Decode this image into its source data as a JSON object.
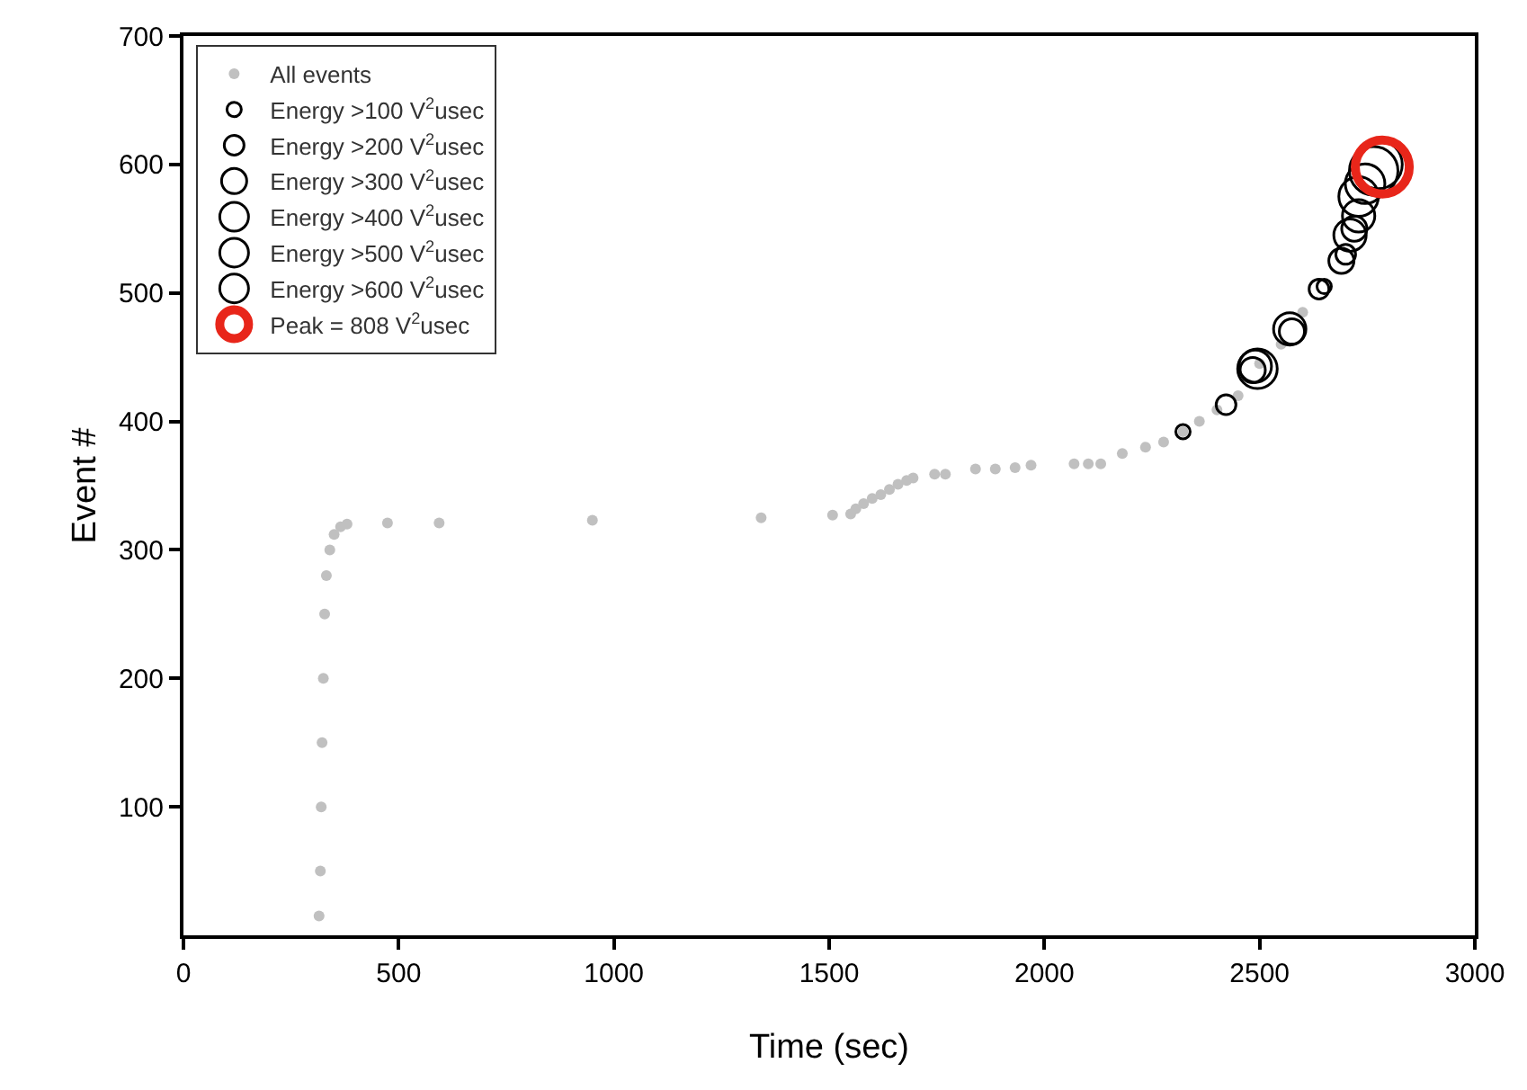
{
  "chart_data": {
    "type": "scatter",
    "xlabel": "Time (sec)",
    "ylabel": "Event #",
    "xlim": [
      0,
      3000
    ],
    "xticks": [
      0,
      500,
      1000,
      1500,
      2000,
      2500,
      3000
    ],
    "ylim": [
      0,
      700
    ],
    "yticks": [
      100,
      200,
      300,
      400,
      500,
      600,
      700
    ],
    "grid": false,
    "legend": "top left",
    "marker": "circle",
    "series": [
      {
        "name": "All events",
        "color": "#c0c0c0",
        "x": [
          315,
          318,
          320,
          322,
          325,
          328,
          332,
          340,
          350,
          365,
          380,
          474,
          594,
          950,
          1342,
          1508,
          1550,
          1562,
          1580,
          1600,
          1620,
          1640,
          1660,
          1680,
          1695,
          1745,
          1770,
          1840,
          1886,
          1932,
          1969,
          2069,
          2102,
          2131,
          2181,
          2235,
          2277,
          2322,
          2360,
          2401,
          2450,
          2500,
          2550,
          2600
        ],
        "values": [
          15,
          50,
          100,
          150,
          200,
          250,
          280,
          300,
          312,
          318,
          320,
          321,
          321,
          323,
          325,
          327,
          328,
          332,
          336,
          340,
          343,
          347,
          351,
          354,
          356,
          359,
          359,
          363,
          363,
          364,
          366,
          367,
          367,
          367,
          375,
          380,
          384,
          392,
          400,
          409,
          420,
          445,
          460,
          485
        ]
      },
      {
        "name": "Energy >100 V$^{2}$usec",
        "color": "#000000",
        "x": [
          2322,
          2650
        ],
        "values": [
          392,
          505
        ]
      },
      {
        "name": "Energy >200 V$^{2}$usec",
        "color": "#000000",
        "x": [
          2422,
          2638,
          2700
        ],
        "values": [
          413,
          503,
          530
        ]
      },
      {
        "name": "Energy >300 V$^{2}$usec",
        "color": "#000000",
        "x": [
          2484,
          2575,
          2690,
          2720
        ],
        "values": [
          440,
          470,
          525,
          550
        ]
      },
      {
        "name": "Energy >400 V$^{2}$usec",
        "color": "#000000",
        "x": [
          2490,
          2570,
          2710,
          2730
        ],
        "values": [
          443,
          472,
          545,
          560
        ]
      },
      {
        "name": "Energy >500 V$^{2}$usec",
        "color": "#000000",
        "x": [
          2495,
          2730,
          2745
        ],
        "values": [
          441,
          575,
          585
        ]
      },
      {
        "name": "Energy >600 V$^{2}$usec",
        "color": "#000000",
        "x": [
          2765,
          2775
        ],
        "values": [
          595,
          600
        ]
      },
      {
        "name": "Peak = 808 V$^{2}$usec",
        "color": "#e8261a",
        "x": [
          2785
        ],
        "values": [
          598
        ]
      }
    ]
  }
}
